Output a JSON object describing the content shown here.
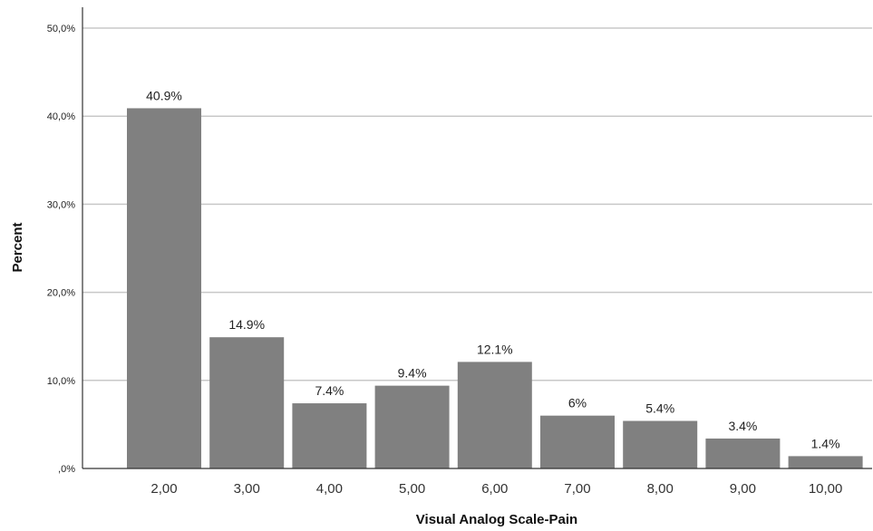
{
  "colors": {
    "bar": "#808080",
    "grid": "#c8c8c8",
    "axis": "#333333"
  },
  "chart_data": {
    "type": "bar",
    "categories": [
      "2,00",
      "3,00",
      "4,00",
      "5,00",
      "6,00",
      "7,00",
      "8,00",
      "9,00",
      "10,00"
    ],
    "values": [
      40.9,
      14.9,
      7.4,
      9.4,
      12.1,
      6,
      5.4,
      3.4,
      1.4
    ],
    "data_labels": [
      "40.9%",
      "14.9%",
      "7.4%",
      "9.4%",
      "12.1%",
      "6%",
      "5.4%",
      "3.4%",
      "1.4%"
    ],
    "title": "",
    "xlabel": "Visual Analog Scale-Pain",
    "ylabel": "Percent",
    "ylim": [
      0,
      50
    ],
    "yticks": [
      0,
      10,
      20,
      30,
      40,
      50
    ],
    "ytick_labels": [
      ",0%",
      "10,0%",
      "20,0%",
      "30,0%",
      "40,0%",
      "50,0%"
    ],
    "grid": true,
    "legend": "none"
  }
}
